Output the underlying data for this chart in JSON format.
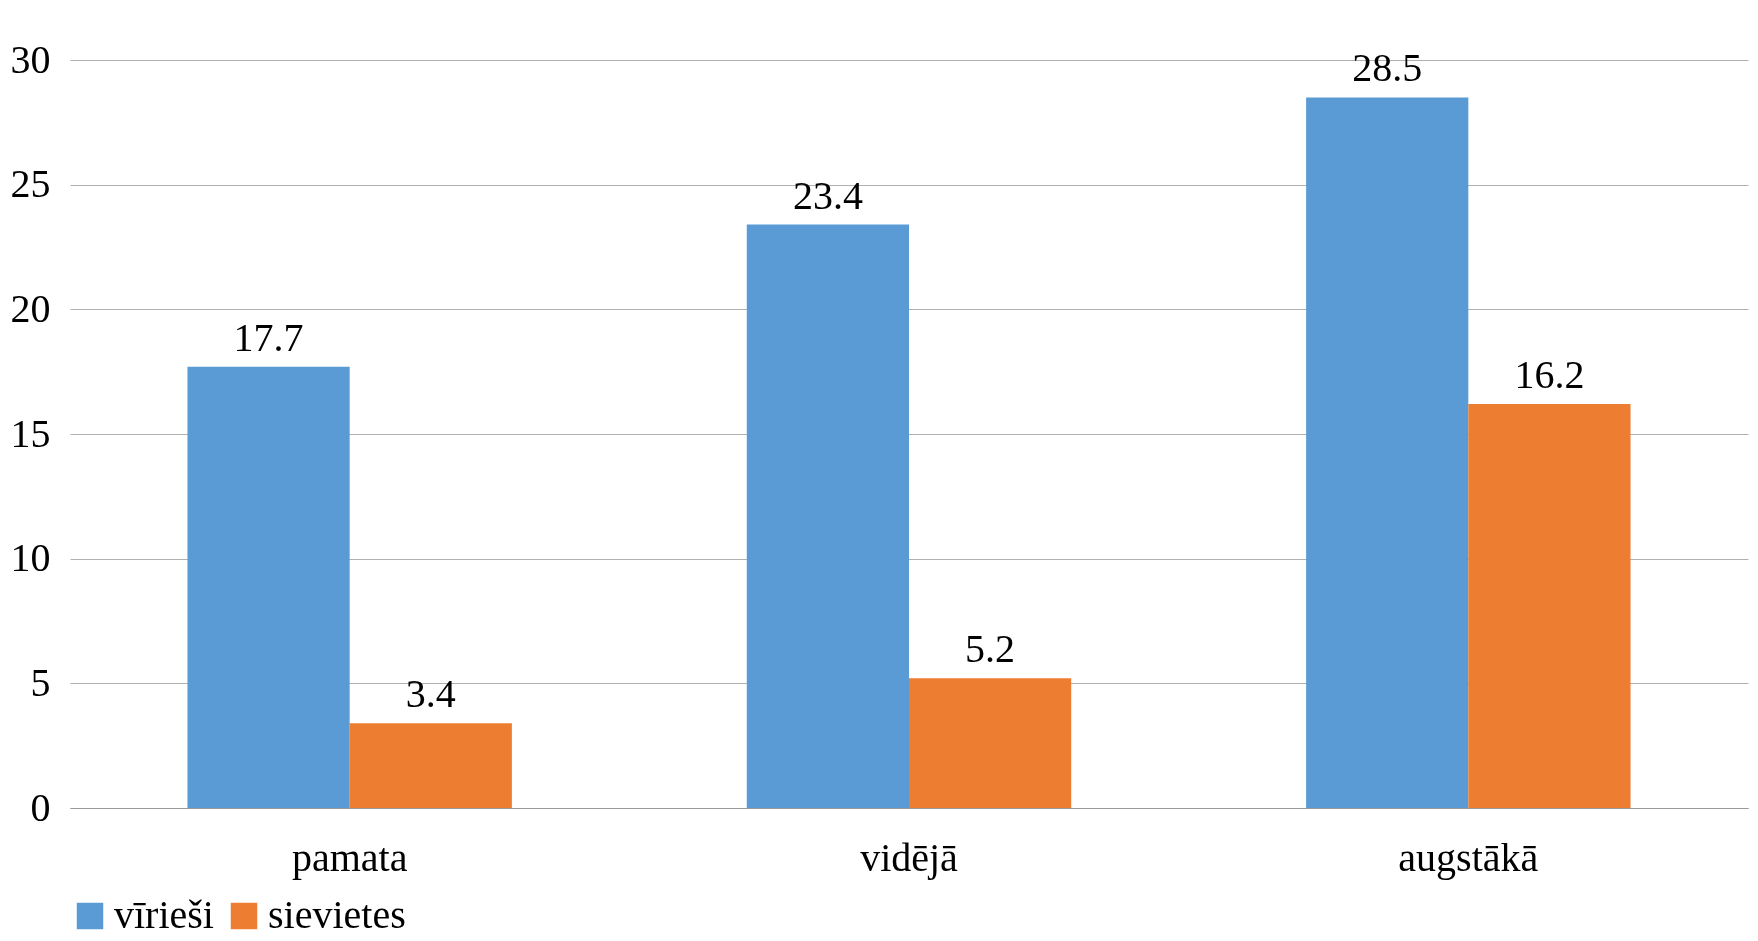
{
  "chart_data": {
    "type": "bar",
    "categories": [
      "pamata",
      "vidējā",
      "augstākā"
    ],
    "series": [
      {
        "name": "vīrieši",
        "color": "#5b9bd5",
        "values": [
          17.7,
          23.4,
          28.5
        ]
      },
      {
        "name": "sievietes",
        "color": "#ed7d31",
        "values": [
          3.4,
          5.2,
          16.2
        ]
      }
    ],
    "ylim": [
      0,
      30
    ],
    "yticks": [
      0,
      5,
      10,
      15,
      20,
      25,
      30
    ],
    "grid": "y",
    "legend": "bottom",
    "data_labels": true
  }
}
